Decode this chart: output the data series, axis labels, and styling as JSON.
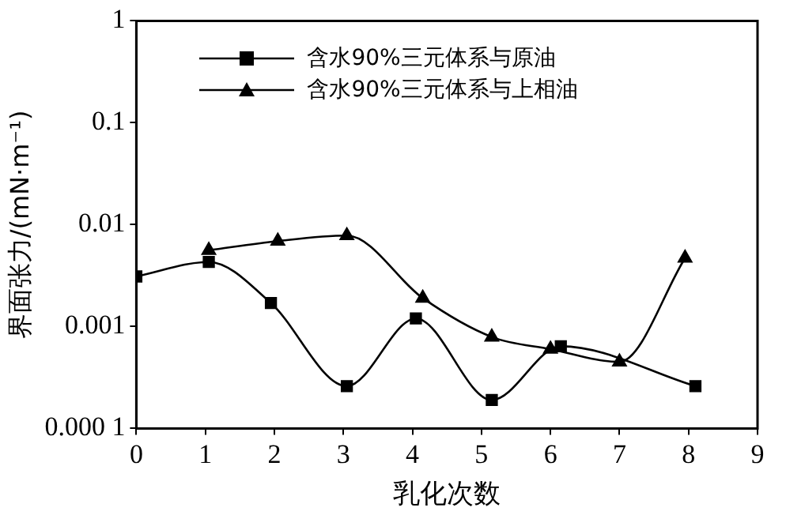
{
  "chart_data": {
    "type": "line",
    "xlabel": "乳化次数",
    "ylabel": "界面张力/(mN·m⁻¹)",
    "log": "y",
    "legend": "top left",
    "grid": false,
    "line_style": "solid",
    "xlim": [
      0,
      9
    ],
    "xticks": [
      0,
      1,
      2,
      3,
      4,
      5,
      6,
      7,
      8,
      9
    ],
    "ylim": [
      0.0001,
      1
    ],
    "yticks": [
      {
        "value": 0.0001,
        "label": "0.000 1"
      },
      0.001,
      0.01,
      0.1,
      1
    ],
    "series": [
      {
        "name": "含水90%三元体系与原油",
        "color": "#000000",
        "marker": "square",
        "x": [
          0,
          1.05,
          1.95,
          3.05,
          4.05,
          5.15,
          6.15,
          8.1
        ],
        "values": [
          0.0031,
          0.0043,
          0.0017,
          0.00026,
          0.0012,
          0.00019,
          0.00064,
          0.00026
        ]
      },
      {
        "name": "含水90%三元体系与上相油",
        "color": "#000000",
        "marker": "triangle",
        "x": [
          1.05,
          2.05,
          3.05,
          4.15,
          5.15,
          6.0,
          7.0,
          7.95
        ],
        "values": [
          0.0056,
          0.0069,
          0.0078,
          0.0019,
          0.00079,
          0.0006,
          0.00045,
          0.0047
        ]
      }
    ]
  }
}
